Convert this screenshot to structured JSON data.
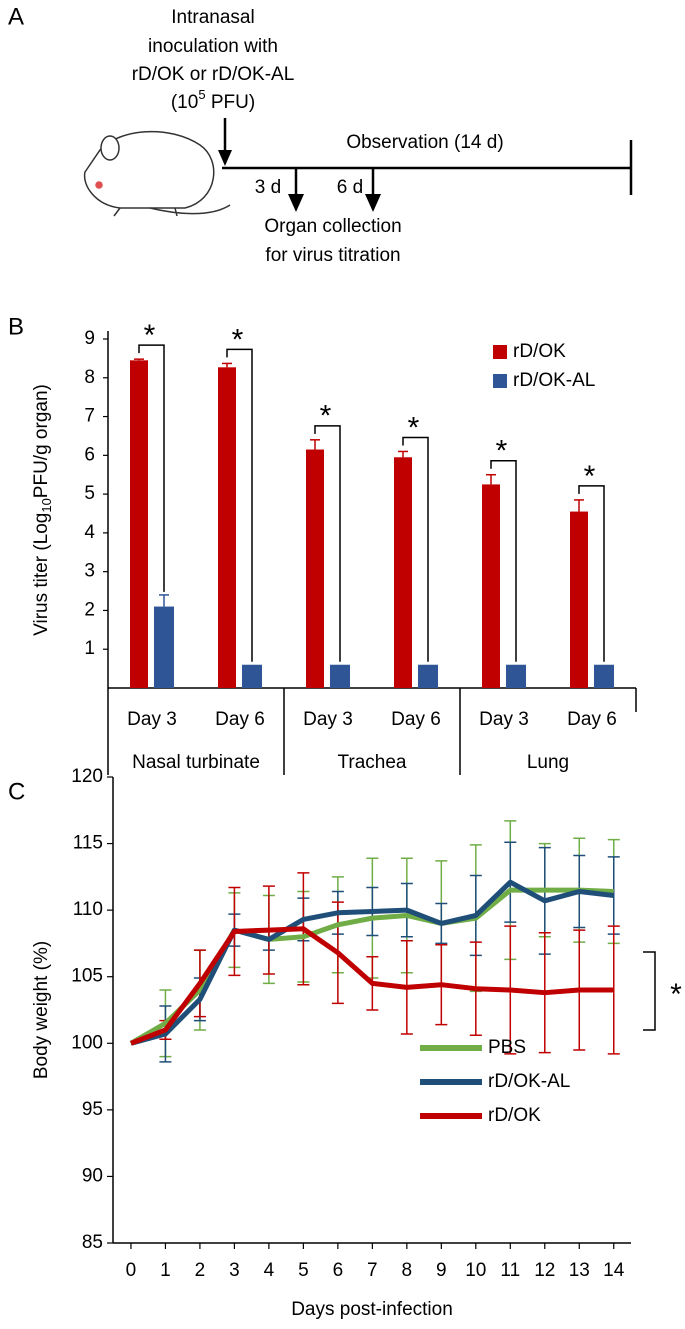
{
  "diagram": {
    "label": "A",
    "inoculation": [
      "Intranasal",
      "inoculation with",
      "rD/OK or rD/OK-AL"
    ],
    "dose": [
      "(10",
      "5",
      " PFU)"
    ],
    "observation": "Observation (14 d)",
    "day3": "3 d",
    "day6": "6 d",
    "collection": [
      "Organ collection",
      "for virus titration"
    ]
  },
  "chart_data": [
    {
      "type": "bar",
      "label": "B",
      "ylabel": [
        "Virus titer (Log",
        "10",
        "PFU/g organ)"
      ],
      "categories": [
        "Day 3",
        "Day 6",
        "Day 3",
        "Day 6",
        "Day 3",
        "Day 6"
      ],
      "groups": [
        "Nasal turbinate",
        "Trachea",
        "Lung"
      ],
      "ylim": [
        0,
        9
      ],
      "yticks": [
        1,
        2,
        3,
        4,
        5,
        6,
        7,
        8,
        9
      ],
      "series": [
        {
          "name": "rD/OK",
          "color": "#c00000",
          "values": [
            8.45,
            8.27,
            6.15,
            5.95,
            5.25,
            4.55
          ],
          "errors": [
            0.03,
            0.1,
            0.25,
            0.15,
            0.25,
            0.3
          ]
        },
        {
          "name": "rD/OK-AL",
          "color": "#2f5597",
          "values": [
            2.1,
            0.6,
            0.6,
            0.6,
            0.6,
            0.6
          ],
          "errors": [
            0.3,
            null,
            null,
            null,
            null,
            null
          ]
        }
      ],
      "significance": [
        "*",
        "*",
        "*",
        "*",
        "*",
        "*"
      ]
    },
    {
      "type": "line",
      "label": "C",
      "xlabel": "Days post-infection",
      "ylabel": "Body weight (%)",
      "x": [
        0,
        1,
        2,
        3,
        4,
        5,
        6,
        7,
        8,
        9,
        10,
        11,
        12,
        13,
        14
      ],
      "xlim": [
        -0.5,
        14.5
      ],
      "xticks": [
        0,
        1,
        2,
        3,
        4,
        5,
        6,
        7,
        8,
        9,
        10,
        11,
        12,
        13,
        14
      ],
      "ylim": [
        85,
        120
      ],
      "yticks": [
        85,
        90,
        95,
        100,
        105,
        110,
        115,
        120
      ],
      "series": [
        {
          "name": "PBS",
          "color": "#70ad47",
          "values": [
            100,
            101.5,
            104,
            108.5,
            107.8,
            108,
            108.9,
            109.4,
            109.6,
            109,
            109.4,
            111.5,
            111.5,
            111.5,
            111.4
          ],
          "errors": [
            0,
            2.5,
            3.0,
            2.8,
            3.3,
            3.4,
            3.6,
            4.5,
            4.3,
            4.7,
            5.5,
            5.2,
            3.5,
            3.9,
            3.9
          ]
        },
        {
          "name": "rD/OK-AL",
          "color": "#1f4e79",
          "values": [
            100,
            100.7,
            103.3,
            108.5,
            107.8,
            109.3,
            109.8,
            109.9,
            110,
            109,
            109.6,
            112.1,
            110.7,
            111.4,
            111.1
          ],
          "errors": [
            0,
            2.1,
            1.6,
            1.2,
            0.8,
            1.6,
            1.6,
            1.8,
            2.0,
            1.5,
            3.0,
            3.0,
            4.0,
            2.7,
            2.9
          ]
        },
        {
          "name": "rD/OK",
          "color": "#c00000",
          "values": [
            100,
            101,
            104.5,
            108.4,
            108.5,
            108.6,
            106.8,
            104.5,
            104.2,
            104.4,
            104.1,
            104,
            103.8,
            104,
            104
          ],
          "errors": [
            0,
            0.7,
            2.5,
            3.3,
            3.3,
            4.2,
            3.8,
            2.0,
            3.5,
            3.0,
            3.5,
            4.8,
            4.5,
            4.5,
            4.8
          ]
        }
      ],
      "significance": "*"
    }
  ]
}
